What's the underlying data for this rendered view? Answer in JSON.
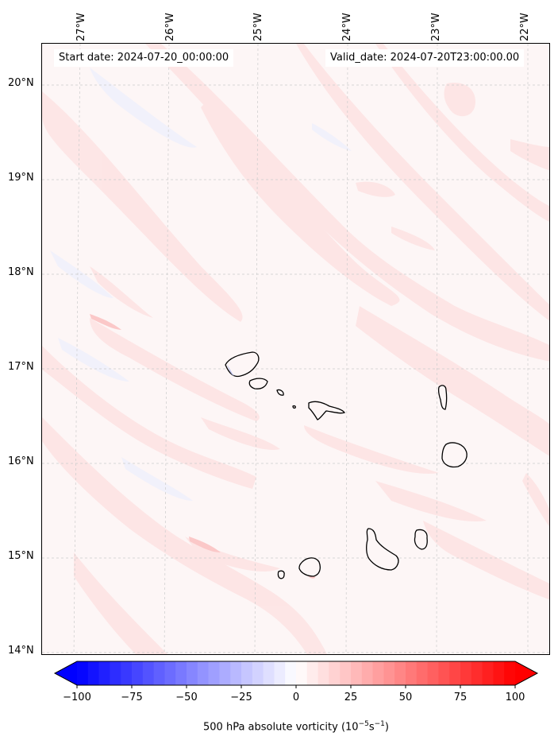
{
  "map": {
    "start_label": "Start date: 2024-07-20_00:00:00",
    "valid_label": "Valid_date: 2024-07-20T23:00:00.00",
    "lon_labels": [
      "27°W",
      "26°W",
      "25°W",
      "24°W",
      "23°W",
      "22°W"
    ],
    "lat_labels": [
      "20°N",
      "19°N",
      "18°N",
      "17°N",
      "16°N",
      "15°N",
      "14°N"
    ],
    "gridlines": "dashed",
    "features": [
      "Cape Verde islands coastline",
      "vorticity streaks"
    ]
  },
  "colorbar": {
    "ticks": [
      "−100",
      "−75",
      "−50",
      "−25",
      "0",
      "25",
      "50",
      "75",
      "100"
    ],
    "label_main": "500 hPa absolute vorticity (10",
    "label_exp1": "−5",
    "label_mid": "s",
    "label_exp2": "−1",
    "label_end": ")",
    "colormap": "bwr",
    "range": [
      -100,
      100
    ],
    "extend": "both"
  },
  "colors": {
    "negative": "#0000ff",
    "zero": "#ffffff",
    "positive": "#ff0000",
    "background_field": "#fdf6f6",
    "streak": "#fde6e6"
  }
}
